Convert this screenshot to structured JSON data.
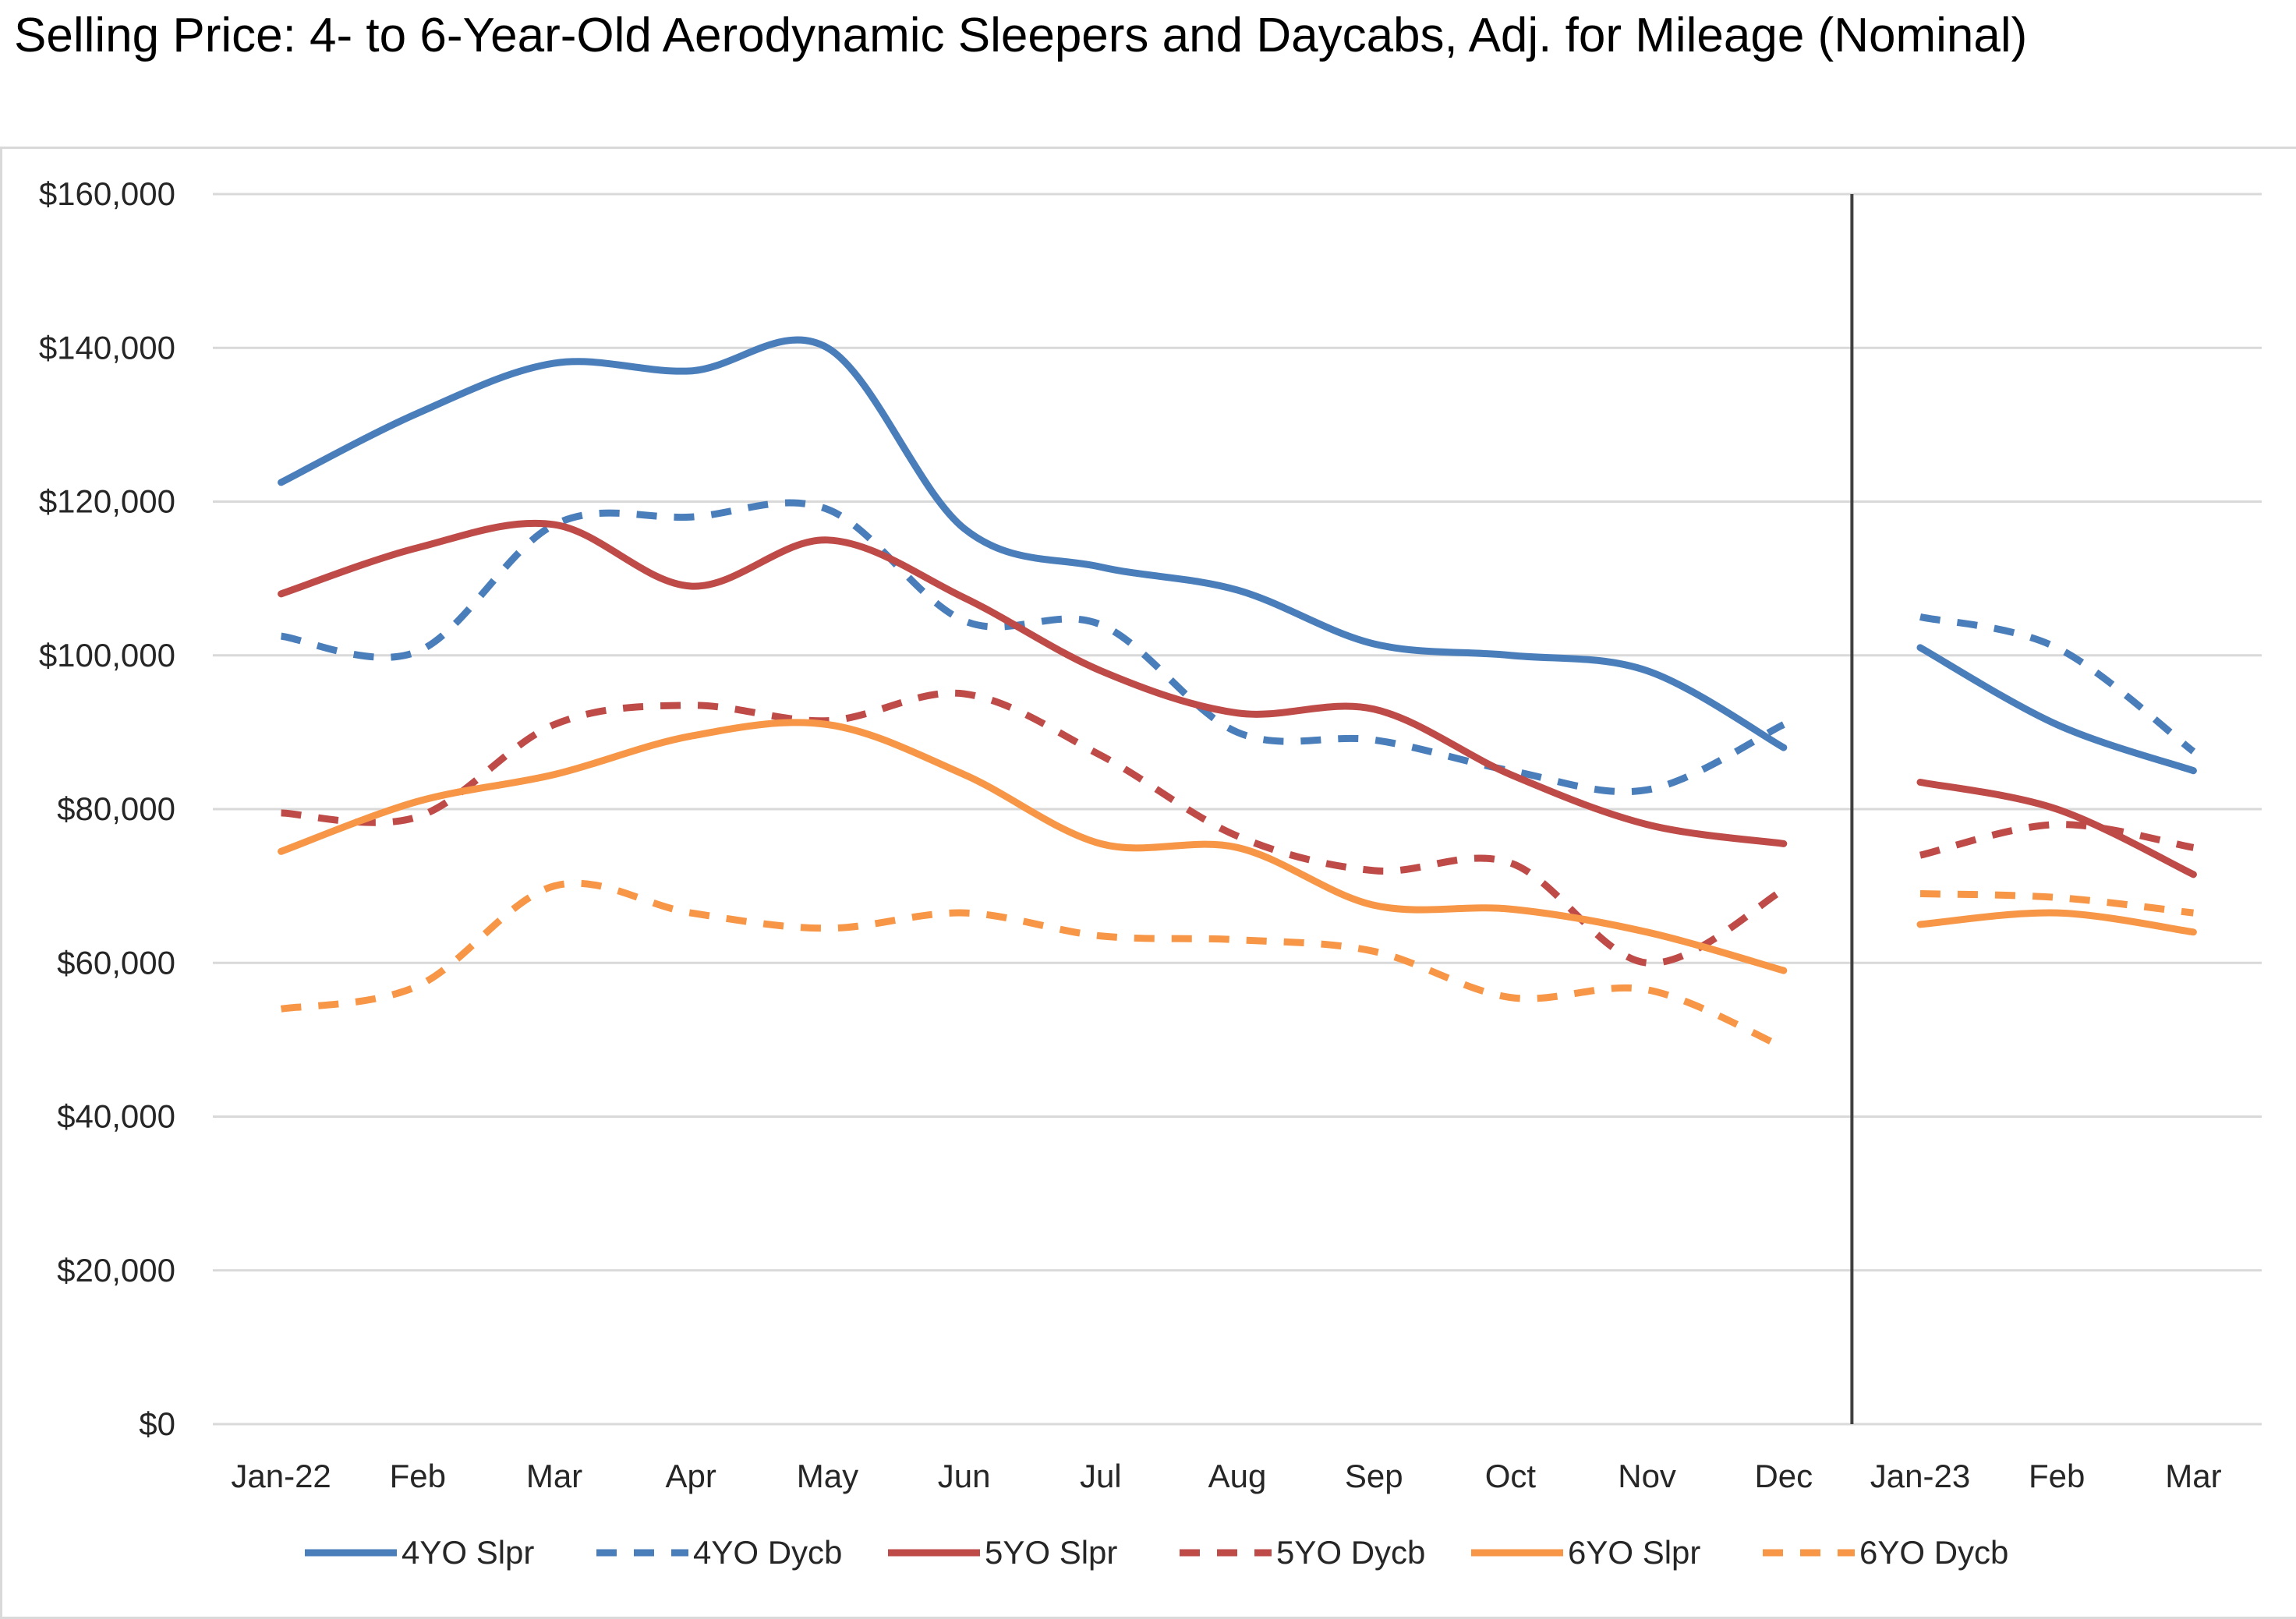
{
  "page": {
    "title": "Selling Price: 4- to 6-Year-Old Aerodynamic Sleepers and Daycabs, Adj. for Mileage (Nominal)"
  },
  "chart_data": {
    "type": "line",
    "title": "Selling Price: 4- to 6-Year-Old Aerodynamic Sleepers and Daycabs, Adj. for Mileage (Nominal)",
    "xlabel": "",
    "ylabel": "",
    "categories": [
      "Jan-22",
      "Feb",
      "Mar",
      "Apr",
      "May",
      "Jun",
      "Jul",
      "Aug",
      "Sep",
      "Oct",
      "Nov",
      "Dec",
      "Jan-23",
      "Feb",
      "Mar"
    ],
    "segment_break_after": "Dec",
    "ylim": [
      0,
      160000
    ],
    "y_ticks": [
      0,
      20000,
      40000,
      60000,
      80000,
      100000,
      120000,
      140000,
      160000
    ],
    "y_tick_labels": [
      "$0",
      "$20,000",
      "$40,000",
      "$60,000",
      "$80,000",
      "$100,000",
      "$120,000",
      "$140,000",
      "$160,000"
    ],
    "grid": "horizontal",
    "legend_position": "bottom",
    "series": [
      {
        "name": "4YO Slpr",
        "color": "#4a7ebb",
        "dash": "solid",
        "values": [
          122500,
          131500,
          138000,
          137000,
          140000,
          116500,
          111500,
          108500,
          101500,
          100000,
          98000,
          88000,
          101000,
          91000,
          85000
        ]
      },
      {
        "name": "4YO Dycb",
        "color": "#4a7ebb",
        "dash": "dashed",
        "values": [
          102500,
          100500,
          117000,
          118000,
          119000,
          104500,
          104000,
          90000,
          89000,
          85000,
          82500,
          91000,
          105000,
          101000,
          87500
        ]
      },
      {
        "name": "5YO Slpr",
        "color": "#be4b48",
        "dash": "solid",
        "values": [
          108000,
          114000,
          117000,
          109000,
          115000,
          107500,
          98000,
          92500,
          93000,
          84500,
          78000,
          75500,
          83500,
          80000,
          71500
        ]
      },
      {
        "name": "5YO Dycb",
        "color": "#be4b48",
        "dash": "dashed",
        "values": [
          79500,
          79000,
          91000,
          93500,
          91500,
          95000,
          87000,
          76500,
          72000,
          73000,
          60000,
          69500,
          74000,
          78000,
          75000
        ]
      },
      {
        "name": "6YO Slpr",
        "color": "#f79646",
        "dash": "solid",
        "values": [
          74500,
          81000,
          84500,
          89500,
          91000,
          84500,
          75500,
          75000,
          67500,
          67000,
          64000,
          59000,
          65000,
          66500,
          64000
        ]
      },
      {
        "name": "6YO Dycb",
        "color": "#f79646",
        "dash": "dashed",
        "values": [
          54000,
          57000,
          70000,
          66500,
          64500,
          66500,
          63500,
          63000,
          61500,
          55500,
          56500,
          49000,
          69000,
          68500,
          66500
        ]
      }
    ]
  }
}
